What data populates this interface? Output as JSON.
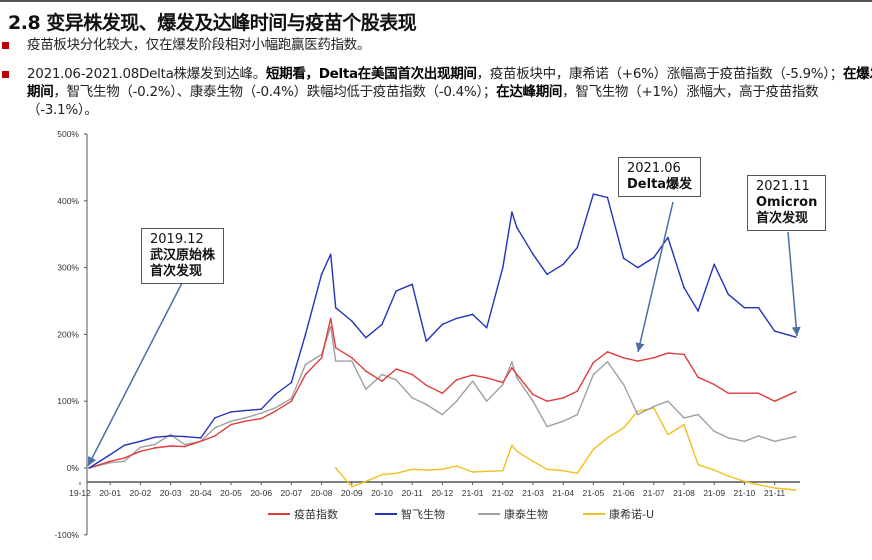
{
  "header": {
    "title": "2.8 变异株发现、爆发及达峰时间与疫苗个股表现"
  },
  "bullets": [
    {
      "parts": [
        {
          "text": "疫苗板块分化较大，仅在爆发阶段相对小幅跑赢医药指数。",
          "bold": false
        }
      ]
    },
    {
      "parts": [
        {
          "text": "2021.06-2021.08Delta株爆发到达峰。",
          "bold": false
        },
        {
          "text": "短期看，Delta在美国首次出现期间",
          "bold": true
        },
        {
          "text": "，疫苗板块中，康希诺（+6%）涨幅高于疫苗指数（-5.9%）；",
          "bold": false
        },
        {
          "text": "在爆发期间",
          "bold": true
        },
        {
          "text": "，智飞生物（-0.2%）、康泰生物（-0.4%）跌幅均低于疫苗指数（-0.4%）；",
          "bold": false
        },
        {
          "text": "在达峰期间",
          "bold": true
        },
        {
          "text": "，智飞生物（+1%）涨幅大，高于疫苗指数（-3.1%）。",
          "bold": false
        }
      ]
    }
  ],
  "colors": {
    "accent": "#c00000",
    "red": "#e03c3c",
    "blue": "#2233bb",
    "gray": "#a0a0a0",
    "yellow": "#f0c020"
  },
  "annotations": [
    {
      "line1": "2019.12",
      "line2": "武汉原始株",
      "line3": "首次发现",
      "points_to": "2019-12-10"
    },
    {
      "line1": "2021.06",
      "line2": "Delta爆发",
      "line3": "",
      "points_to": "2021-06-15"
    },
    {
      "line1": "2021.11",
      "line2": "Omicron",
      "line3": "首次发现",
      "points_to": "2021-11-22"
    }
  ],
  "chart_data": {
    "type": "line",
    "title": "",
    "xlabel": "",
    "ylabel": "",
    "ylim": [
      -100,
      500
    ],
    "y_ticks": [
      "500%",
      "400%",
      "300%",
      "200%",
      "100%",
      "0%",
      "-100%"
    ],
    "y_tick_values": [
      500,
      400,
      300,
      200,
      100,
      0,
      -100
    ],
    "x_ticks": [
      "19-12",
      "20-01",
      "20-02",
      "20-03",
      "20-04",
      "20-05",
      "20-06",
      "20-07",
      "20-08",
      "20-09",
      "20-10",
      "20-11",
      "20-12",
      "21-01",
      "21-02",
      "21-03",
      "21-04",
      "21-05",
      "21-06",
      "21-07",
      "21-08",
      "21-09",
      "21-10",
      "21-11"
    ],
    "grid": false,
    "legend": "bottom",
    "x": [
      "2019-12-10",
      "2020-01-01",
      "2020-01-15",
      "2020-02-01",
      "2020-02-15",
      "2020-03-01",
      "2020-03-15",
      "2020-04-01",
      "2020-04-15",
      "2020-05-01",
      "2020-05-15",
      "2020-06-01",
      "2020-06-15",
      "2020-07-01",
      "2020-07-15",
      "2020-08-01",
      "2020-08-10",
      "2020-08-15",
      "2020-09-01",
      "2020-09-15",
      "2020-10-01",
      "2020-10-15",
      "2020-11-01",
      "2020-11-15",
      "2020-12-01",
      "2020-12-15",
      "2021-01-01",
      "2021-01-15",
      "2021-02-01",
      "2021-02-10",
      "2021-02-15",
      "2021-03-01",
      "2021-03-15",
      "2021-04-01",
      "2021-04-15",
      "2021-05-01",
      "2021-05-15",
      "2021-06-01",
      "2021-06-15",
      "2021-07-01",
      "2021-07-15",
      "2021-08-01",
      "2021-08-15",
      "2021-09-01",
      "2021-09-15",
      "2021-10-01",
      "2021-10-15",
      "2021-11-01",
      "2021-11-22"
    ],
    "series": [
      {
        "name": "疫苗指数",
        "color": "#e03c3c",
        "values": [
          0,
          10,
          15,
          25,
          30,
          33,
          32,
          40,
          48,
          65,
          70,
          74,
          85,
          100,
          140,
          165,
          224,
          180,
          165,
          145,
          130,
          148,
          140,
          124,
          112,
          132,
          139,
          135,
          128,
          150,
          140,
          110,
          100,
          105,
          115,
          158,
          174,
          165,
          160,
          165,
          172,
          170,
          136,
          125,
          112,
          112,
          112,
          100,
          114
        ]
      },
      {
        "name": "智飞生物",
        "color": "#2233bb",
        "values": [
          0,
          20,
          34,
          40,
          46,
          48,
          47,
          45,
          75,
          84,
          86,
          88,
          110,
          128,
          200,
          290,
          320,
          240,
          220,
          195,
          215,
          265,
          275,
          190,
          215,
          224,
          230,
          210,
          300,
          383,
          360,
          320,
          290,
          305,
          330,
          410,
          405,
          314,
          300,
          315,
          345,
          270,
          235,
          305,
          260,
          240,
          240,
          205,
          196
        ]
      },
      {
        "name": "康泰生物",
        "color": "#a0a0a0",
        "values": [
          0,
          8,
          10,
          31,
          35,
          50,
          35,
          40,
          60,
          70,
          75,
          82,
          90,
          104,
          155,
          170,
          212,
          160,
          160,
          118,
          140,
          132,
          105,
          95,
          80,
          100,
          130,
          100,
          125,
          159,
          135,
          100,
          62,
          70,
          80,
          140,
          159,
          125,
          80,
          92,
          100,
          75,
          80,
          55,
          45,
          40,
          48,
          40,
          47
        ]
      },
      {
        "name": "康希诺-U",
        "color": "#f0c020",
        "values": [
          null,
          null,
          null,
          null,
          null,
          null,
          null,
          null,
          null,
          null,
          null,
          null,
          null,
          null,
          null,
          null,
          null,
          0,
          -28,
          -20,
          -10,
          -8,
          -2,
          -3,
          -2,
          3,
          -6,
          -5,
          -4,
          34,
          25,
          10,
          -2,
          -4,
          -8,
          28,
          45,
          60,
          85,
          90,
          50,
          65,
          5,
          -3,
          -12,
          -20,
          -25,
          -30,
          -33
        ]
      }
    ]
  }
}
